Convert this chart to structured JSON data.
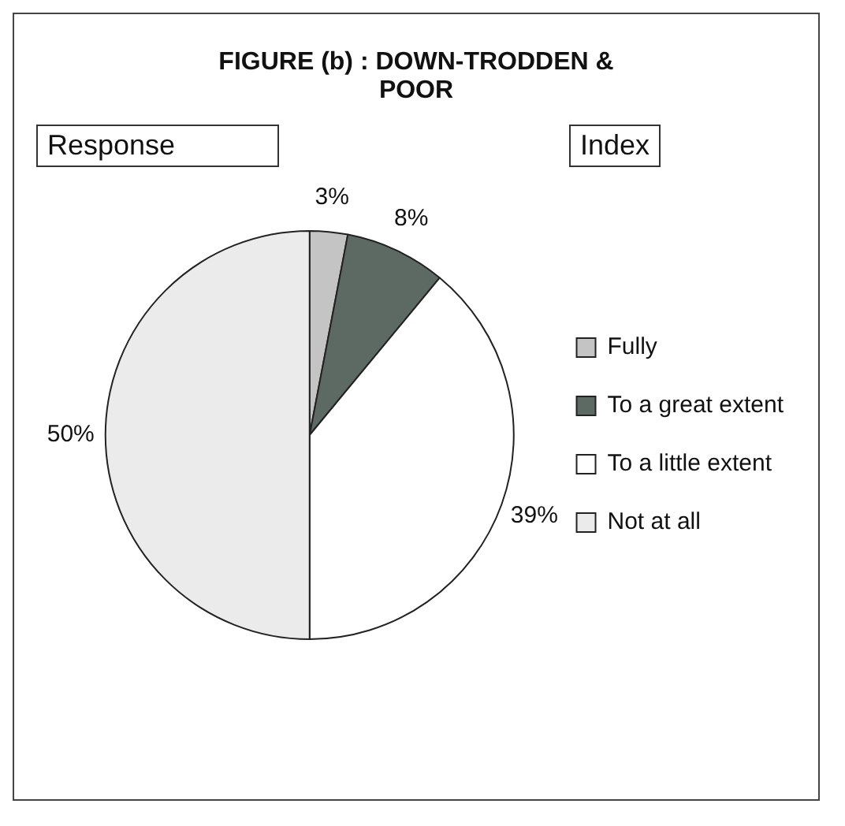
{
  "chart_data": {
    "type": "pie",
    "title": "FIGURE (b) : DOWN-TRODDEN & POOR",
    "annotations": [
      "Response",
      "Index"
    ],
    "categories": [
      "Fully",
      "To a great extent",
      "To a little extent",
      "Not at all"
    ],
    "values": [
      3,
      8,
      39,
      50
    ],
    "colors": [
      "#c4c4c4",
      "#5d6a64",
      "#ffffff",
      "#ebebeb"
    ],
    "value_labels": [
      "3%",
      "8%",
      "39%",
      "50%"
    ],
    "legend": "right"
  }
}
